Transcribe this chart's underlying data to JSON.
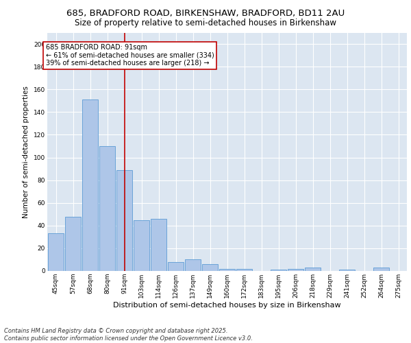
{
  "title_line1": "685, BRADFORD ROAD, BIRKENSHAW, BRADFORD, BD11 2AU",
  "title_line2": "Size of property relative to semi-detached houses in Birkenshaw",
  "xlabel": "Distribution of semi-detached houses by size in Birkenshaw",
  "ylabel": "Number of semi-detached properties",
  "categories": [
    "45sqm",
    "57sqm",
    "68sqm",
    "80sqm",
    "91sqm",
    "103sqm",
    "114sqm",
    "126sqm",
    "137sqm",
    "149sqm",
    "160sqm",
    "172sqm",
    "183sqm",
    "195sqm",
    "206sqm",
    "218sqm",
    "229sqm",
    "241sqm",
    "252sqm",
    "264sqm",
    "275sqm"
  ],
  "values": [
    33,
    48,
    151,
    110,
    89,
    45,
    46,
    8,
    10,
    6,
    2,
    2,
    0,
    1,
    2,
    3,
    0,
    1,
    0,
    3,
    0
  ],
  "bar_color": "#aec6e8",
  "bar_edge_color": "#5b9bd5",
  "highlight_index": 4,
  "highlight_line_color": "#c00000",
  "annotation_text": "685 BRADFORD ROAD: 91sqm\n← 61% of semi-detached houses are smaller (334)\n39% of semi-detached houses are larger (218) →",
  "annotation_box_color": "#ffffff",
  "annotation_box_edge": "#c00000",
  "ylim": [
    0,
    210
  ],
  "yticks": [
    0,
    20,
    40,
    60,
    80,
    100,
    120,
    140,
    160,
    180,
    200
  ],
  "plot_bg_color": "#dce6f1",
  "fig_bg_color": "#ffffff",
  "grid_color": "#ffffff",
  "footer_line1": "Contains HM Land Registry data © Crown copyright and database right 2025.",
  "footer_line2": "Contains public sector information licensed under the Open Government Licence v3.0.",
  "title_fontsize": 9.5,
  "subtitle_fontsize": 8.5,
  "tick_fontsize": 6.5,
  "xlabel_fontsize": 8,
  "ylabel_fontsize": 7.5,
  "annotation_fontsize": 7,
  "footer_fontsize": 6
}
